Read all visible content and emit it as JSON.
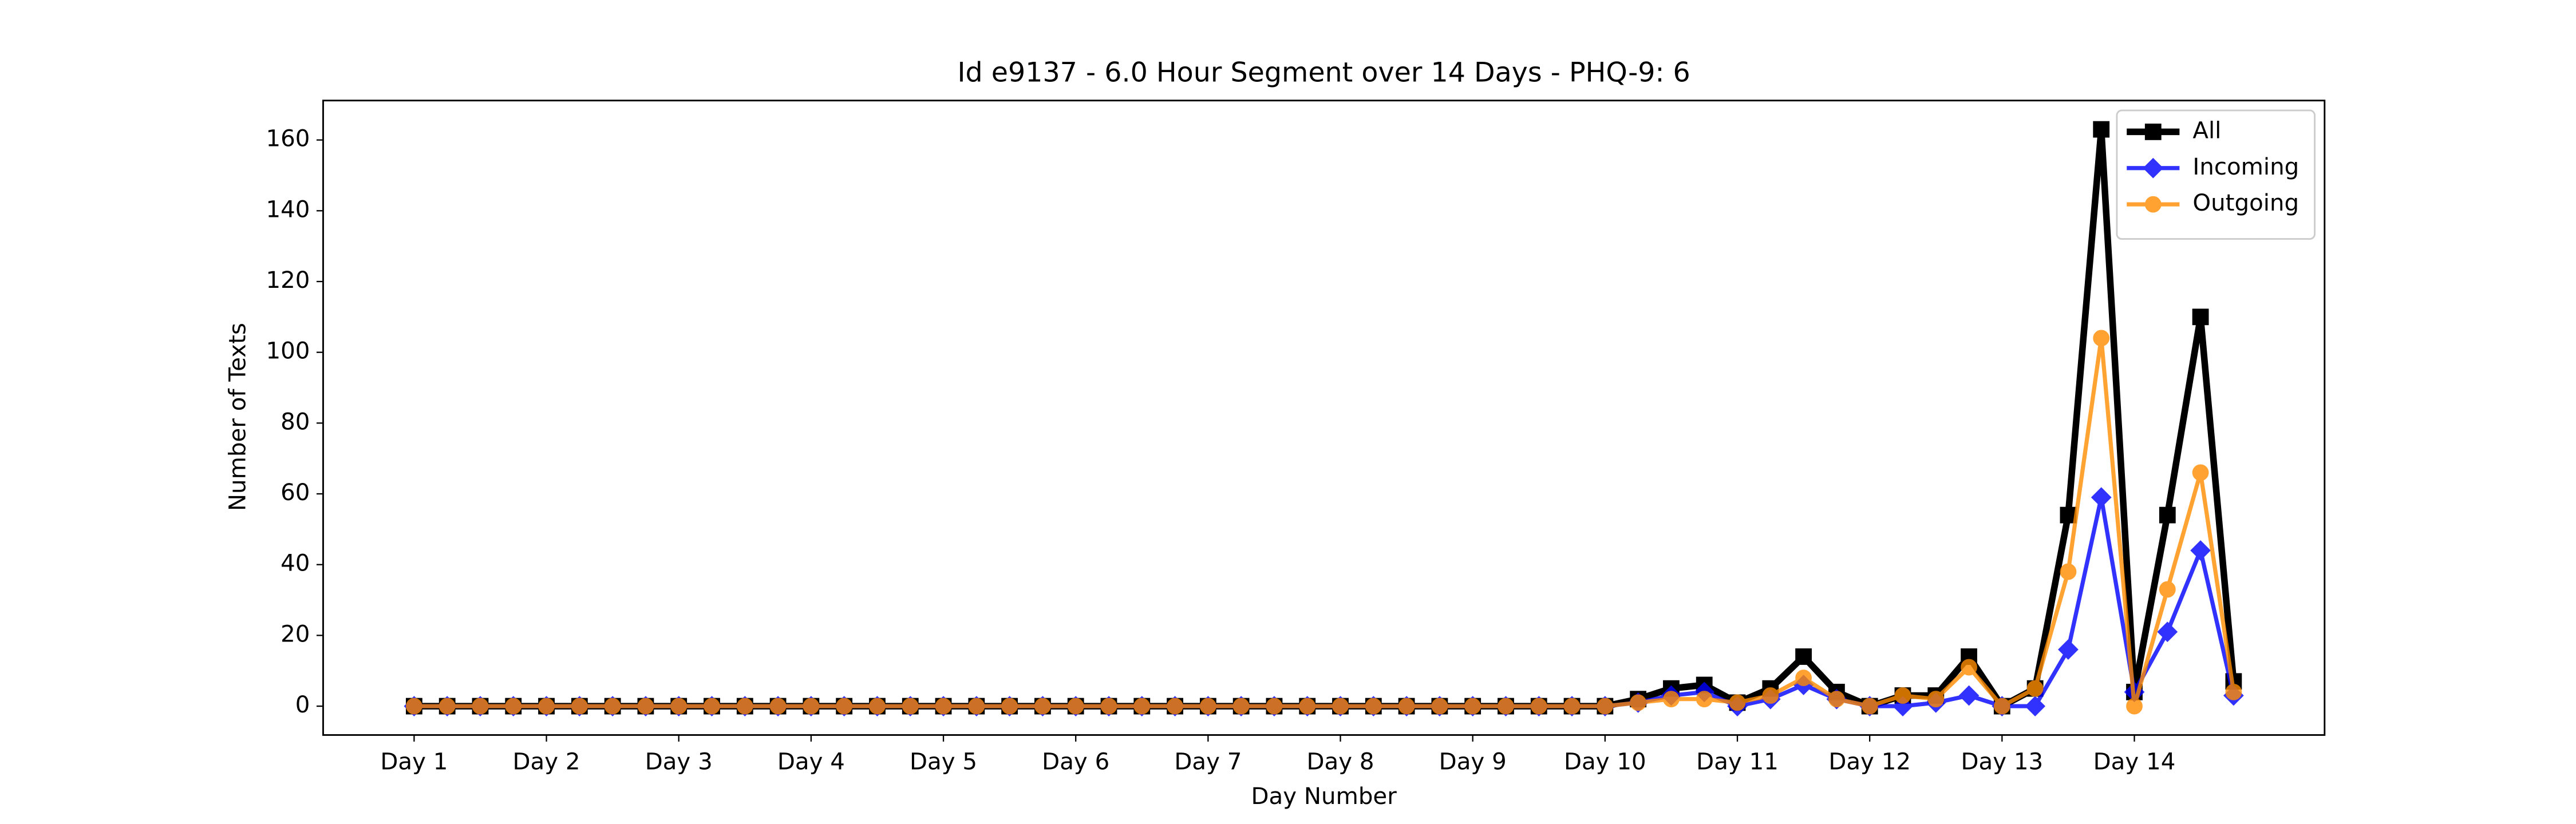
{
  "chart_data": {
    "type": "line",
    "title": "Id e9137 - 6.0 Hour Segment over 14 Days - PHQ-9: 6",
    "xlabel": "Day Number",
    "ylabel": "Number of Texts",
    "x": [
      0,
      1,
      2,
      3,
      4,
      5,
      6,
      7,
      8,
      9,
      10,
      11,
      12,
      13,
      14,
      15,
      16,
      17,
      18,
      19,
      20,
      21,
      22,
      23,
      24,
      25,
      26,
      27,
      28,
      29,
      30,
      31,
      32,
      33,
      34,
      35,
      36,
      37,
      38,
      39,
      40,
      41,
      42,
      43,
      44,
      45,
      46,
      47,
      48,
      49,
      50,
      51,
      52,
      53,
      54,
      55
    ],
    "series": [
      {
        "name": "All",
        "color": "#000000",
        "marker": "square",
        "values": [
          0,
          0,
          0,
          0,
          0,
          0,
          0,
          0,
          0,
          0,
          0,
          0,
          0,
          0,
          0,
          0,
          0,
          0,
          0,
          0,
          0,
          0,
          0,
          0,
          0,
          0,
          0,
          0,
          0,
          0,
          0,
          0,
          0,
          0,
          0,
          0,
          0,
          2,
          5,
          6,
          1,
          5,
          14,
          4,
          0,
          3,
          3,
          14,
          0,
          5,
          54,
          163,
          4,
          54,
          110,
          7
        ]
      },
      {
        "name": "Incoming",
        "color": "#0000ff",
        "marker": "diamond",
        "values": [
          0,
          0,
          0,
          0,
          0,
          0,
          0,
          0,
          0,
          0,
          0,
          0,
          0,
          0,
          0,
          0,
          0,
          0,
          0,
          0,
          0,
          0,
          0,
          0,
          0,
          0,
          0,
          0,
          0,
          0,
          0,
          0,
          0,
          0,
          0,
          0,
          0,
          1,
          3,
          4,
          0,
          2,
          6,
          2,
          0,
          0,
          1,
          3,
          0,
          0,
          16,
          59,
          4,
          21,
          44,
          3
        ]
      },
      {
        "name": "Outgoing",
        "color": "#ff8c00",
        "marker": "circle",
        "values": [
          0,
          0,
          0,
          0,
          0,
          0,
          0,
          0,
          0,
          0,
          0,
          0,
          0,
          0,
          0,
          0,
          0,
          0,
          0,
          0,
          0,
          0,
          0,
          0,
          0,
          0,
          0,
          0,
          0,
          0,
          0,
          0,
          0,
          0,
          0,
          0,
          0,
          1,
          2,
          2,
          1,
          3,
          8,
          2,
          0,
          3,
          2,
          11,
          0,
          5,
          38,
          104,
          0,
          33,
          66,
          4
        ]
      }
    ],
    "xlim": [
      -2.75,
      57.75
    ],
    "xticks": [
      {
        "value": 0,
        "label": "Day 1"
      },
      {
        "value": 4,
        "label": "Day 2"
      },
      {
        "value": 8,
        "label": "Day 3"
      },
      {
        "value": 12,
        "label": "Day 4"
      },
      {
        "value": 16,
        "label": "Day 5"
      },
      {
        "value": 20,
        "label": "Day 6"
      },
      {
        "value": 24,
        "label": "Day 7"
      },
      {
        "value": 28,
        "label": "Day 8"
      },
      {
        "value": 32,
        "label": "Day 9"
      },
      {
        "value": 36,
        "label": "Day 10"
      },
      {
        "value": 40,
        "label": "Day 11"
      },
      {
        "value": 44,
        "label": "Day 12"
      },
      {
        "value": 48,
        "label": "Day 13"
      },
      {
        "value": 52,
        "label": "Day 14"
      }
    ],
    "ylim": [
      -8.15,
      171.15
    ],
    "yticks": [
      0,
      20,
      40,
      60,
      80,
      100,
      120,
      140,
      160
    ],
    "legend": "upper right",
    "grid": false
  }
}
